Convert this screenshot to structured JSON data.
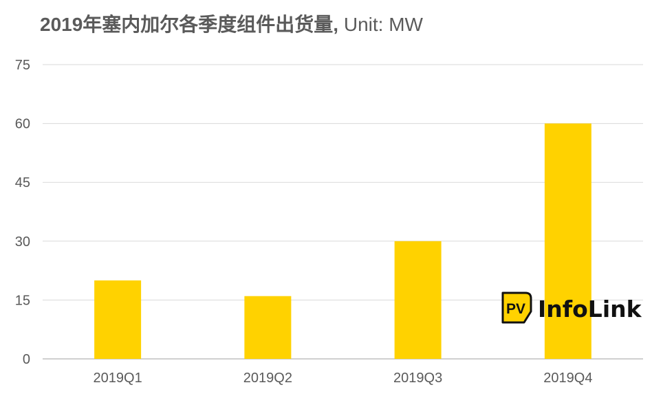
{
  "chart_data": {
    "type": "bar",
    "title_main": "2019年塞内加尔各季度组件出货量,",
    "title_unit": " Unit: MW",
    "xlabel": "",
    "ylabel": "",
    "categories": [
      "2019Q1",
      "2019Q2",
      "2019Q3",
      "2019Q4"
    ],
    "values": [
      20,
      16,
      30,
      60
    ],
    "ylim": [
      0,
      75
    ],
    "yticks": [
      0,
      15,
      30,
      45,
      60,
      75
    ],
    "grid": true,
    "bar_color": "#FFD200",
    "gridline_color": "#d9d9d9",
    "axis_color": "#bfbfbf",
    "tick_label_color": "#595959"
  },
  "watermark": {
    "logo_text": "PV InfoLink",
    "icon": "pv-infolink-logo-icon"
  }
}
